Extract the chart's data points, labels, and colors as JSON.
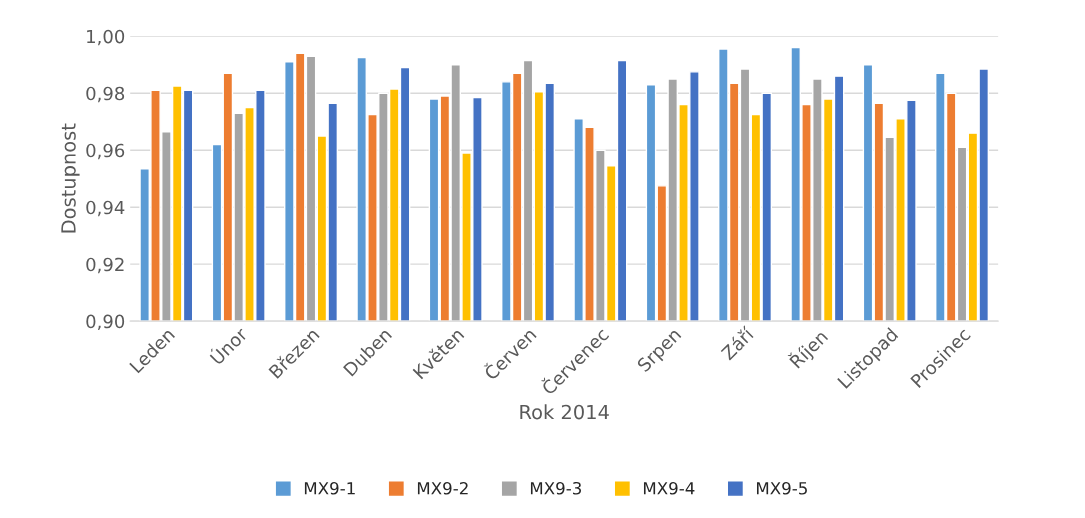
{
  "chart_data": {
    "type": "bar",
    "xlabel": "Rok 2014",
    "ylabel": "Dostupnost",
    "categories": [
      "Leden",
      "Únor",
      "Březen",
      "Duben",
      "Květen",
      "Červen",
      "Červenec",
      "Srpen",
      "Září",
      "Říjen",
      "Listopad",
      "Prosinec"
    ],
    "series": [
      {
        "name": "MX9-1",
        "color": "#5b9bd5",
        "values": [
          0.9535,
          0.962,
          0.991,
          0.9925,
          0.978,
          0.984,
          0.971,
          0.983,
          0.9955,
          0.996,
          0.99,
          0.987
        ]
      },
      {
        "name": "MX9-2",
        "color": "#ed7d31",
        "values": [
          0.981,
          0.987,
          0.994,
          0.9725,
          0.979,
          0.987,
          0.968,
          0.9475,
          0.9835,
          0.976,
          0.9765,
          0.98
        ]
      },
      {
        "name": "MX9-3",
        "color": "#a5a5a5",
        "values": [
          0.9665,
          0.973,
          0.993,
          0.98,
          0.99,
          0.9915,
          0.96,
          0.985,
          0.9885,
          0.985,
          0.9645,
          0.961
        ]
      },
      {
        "name": "MX9-4",
        "color": "#ffc000",
        "values": [
          0.9825,
          0.975,
          0.965,
          0.9815,
          0.959,
          0.9805,
          0.9545,
          0.976,
          0.9725,
          0.978,
          0.971,
          0.966
        ]
      },
      {
        "name": "MX9-5",
        "color": "#4472c4",
        "values": [
          0.981,
          0.981,
          0.9765,
          0.989,
          0.9785,
          0.9835,
          0.9915,
          0.9875,
          0.98,
          0.986,
          0.9775,
          0.9885
        ]
      }
    ],
    "ylim": [
      0.9,
      1.0
    ],
    "yticks": [
      {
        "value": 0.9,
        "label": "0,90"
      },
      {
        "value": 0.92,
        "label": "0,92"
      },
      {
        "value": 0.94,
        "label": "0,94"
      },
      {
        "value": 0.96,
        "label": "0,96"
      },
      {
        "value": 0.98,
        "label": "0,98"
      },
      {
        "value": 1.0,
        "label": "1,00"
      }
    ],
    "grid": "y",
    "legend": "bottom"
  }
}
